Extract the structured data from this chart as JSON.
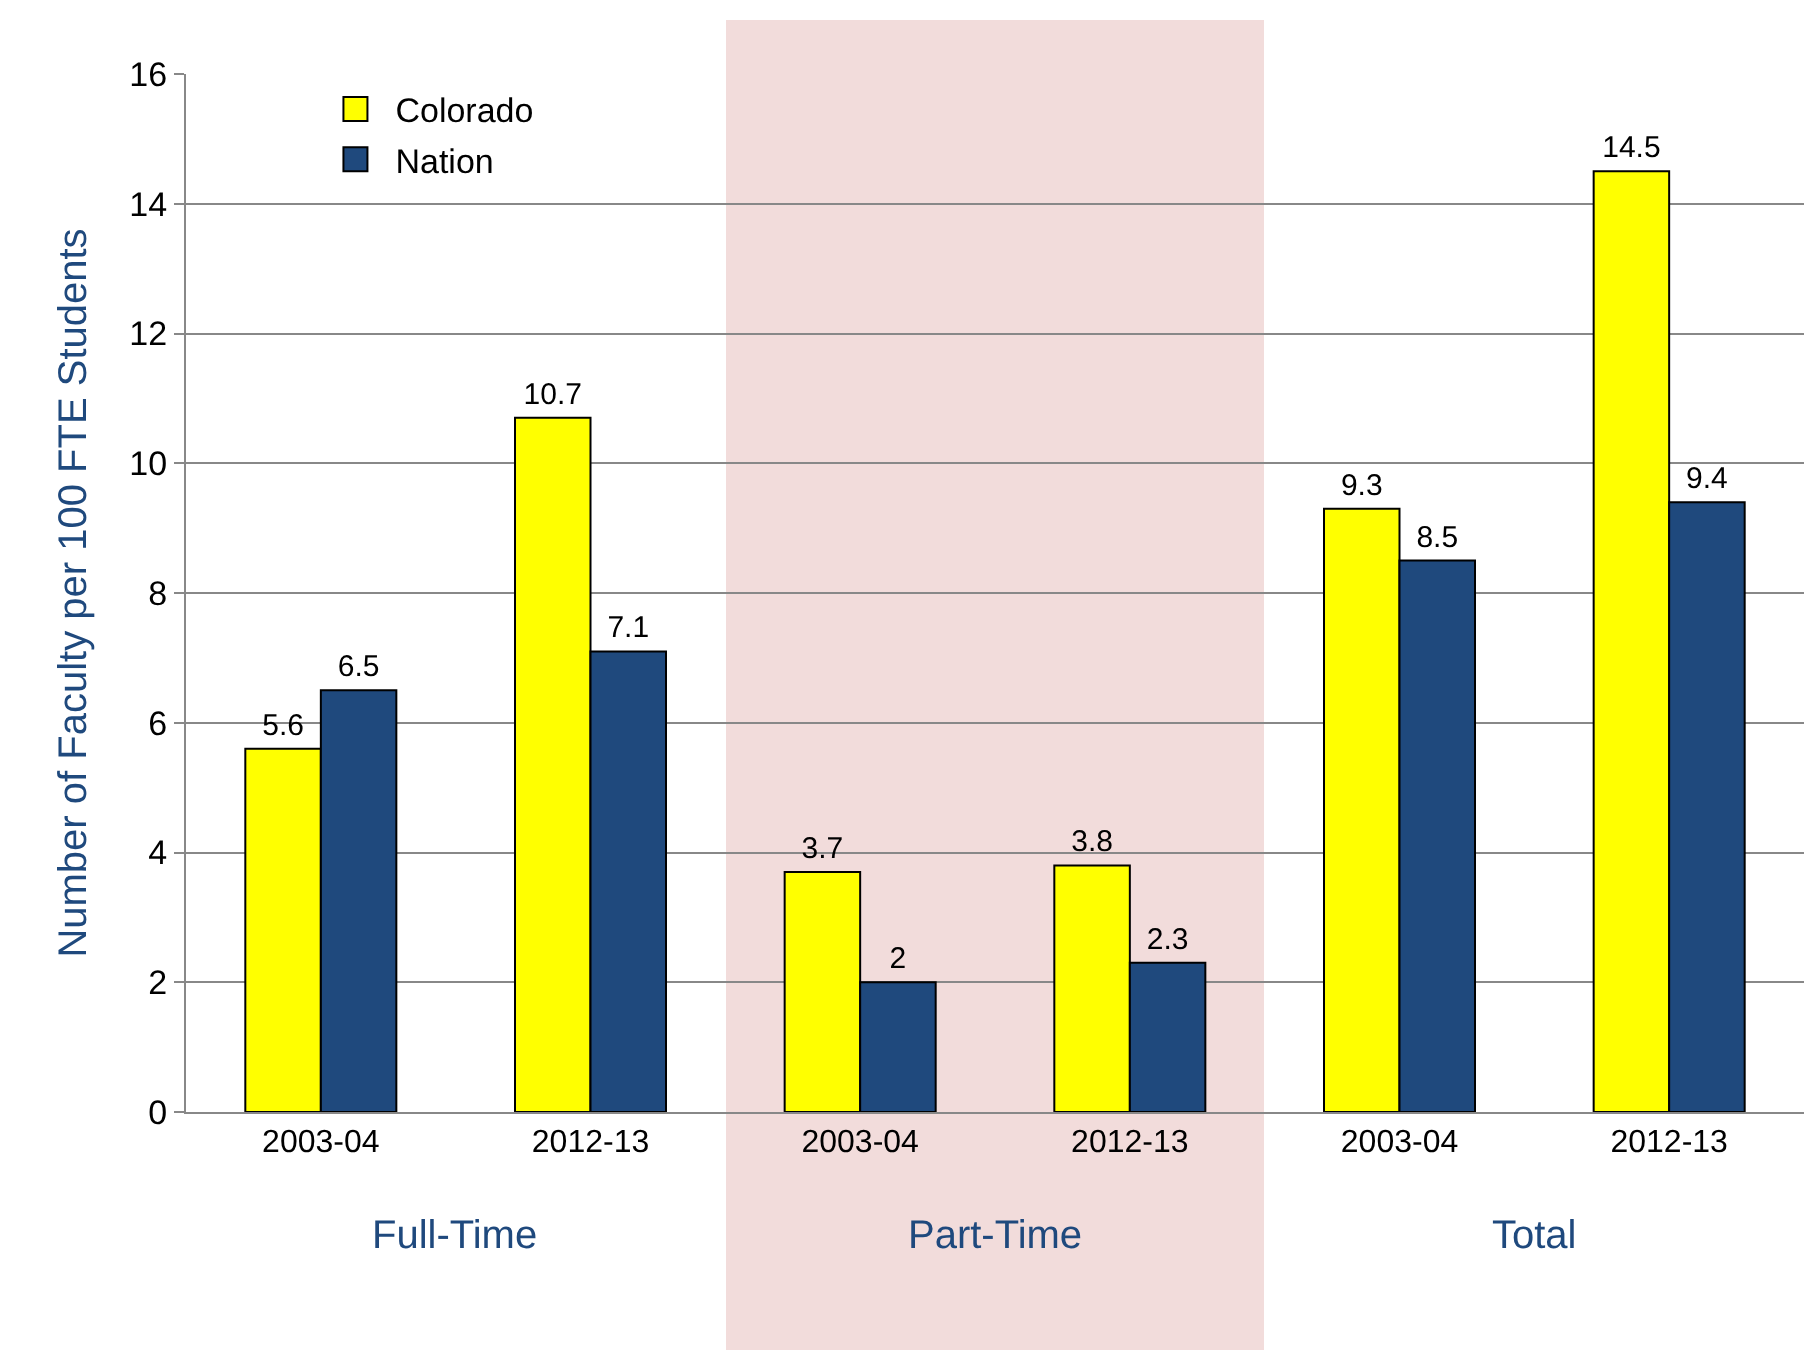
{
  "chart_data": {
    "type": "bar",
    "ylabel": "Number of Faculty per 100 FTE Students",
    "categories": [
      "2003-04",
      "2012-13",
      "2003-04",
      "2012-13",
      "2003-04",
      "2012-13"
    ],
    "series": [
      {
        "name": "Colorado",
        "color": "#ffff00",
        "values": [
          5.6,
          10.7,
          3.7,
          3.8,
          9.3,
          14.5
        ]
      },
      {
        "name": "Nation",
        "color": "#1f497d",
        "values": [
          6.5,
          7.1,
          2,
          2.3,
          8.5,
          9.4
        ]
      }
    ],
    "ylim": [
      0,
      16
    ],
    "yticks": [
      0,
      2,
      4,
      6,
      8,
      10,
      12,
      14,
      16
    ],
    "grid": "y",
    "legend": "top left",
    "data_labels": true,
    "annotations": [
      "Full-Time",
      "Part-Time",
      "Total"
    ]
  }
}
